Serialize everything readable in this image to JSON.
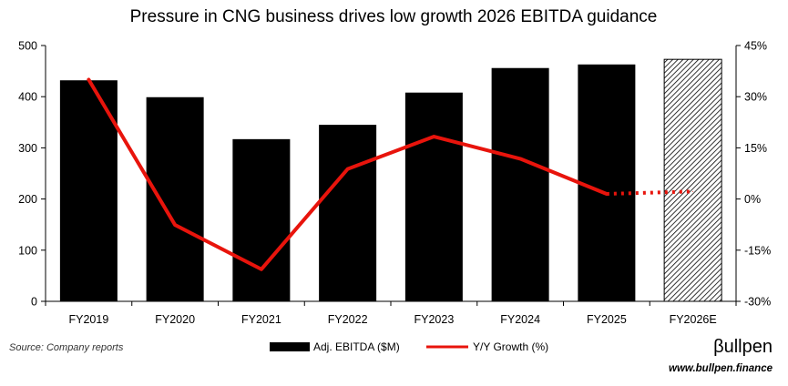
{
  "chart_data": {
    "type": "bar",
    "title": "Pressure in CNG business drives low growth 2026 EBITDA guidance",
    "categories": [
      "FY2019",
      "FY2020",
      "FY2021",
      "FY2022",
      "FY2023",
      "FY2024",
      "FY2025",
      "FY2026E"
    ],
    "series": [
      {
        "name": "Adj. EBITDA ($M)",
        "type": "bar",
        "axis": "left",
        "values": [
          432,
          399,
          317,
          345,
          408,
          456,
          463,
          473
        ],
        "color": "#000000",
        "hatched_categories": [
          "FY2026E"
        ]
      },
      {
        "name": "Y/Y Growth (%)",
        "type": "line",
        "axis": "right",
        "values": [
          35,
          -7.6,
          -20.6,
          8.8,
          18.3,
          11.8,
          1.5,
          2.2
        ],
        "dotted_from_index": 6,
        "color": "#e8140c"
      }
    ],
    "y_left": {
      "min": 0,
      "max": 500,
      "ticks": [
        "0",
        "100",
        "200",
        "300",
        "400",
        "500"
      ]
    },
    "y_right": {
      "min": -30,
      "max": 45,
      "ticks": [
        "-30%",
        "-15%",
        "0%",
        "15%",
        "30%",
        "45%"
      ]
    },
    "legend_position": "bottom-center",
    "grid": false
  },
  "footer": {
    "source": "Source: Company reports",
    "brand": "βullpen",
    "website": "www.bullpen.finance"
  }
}
